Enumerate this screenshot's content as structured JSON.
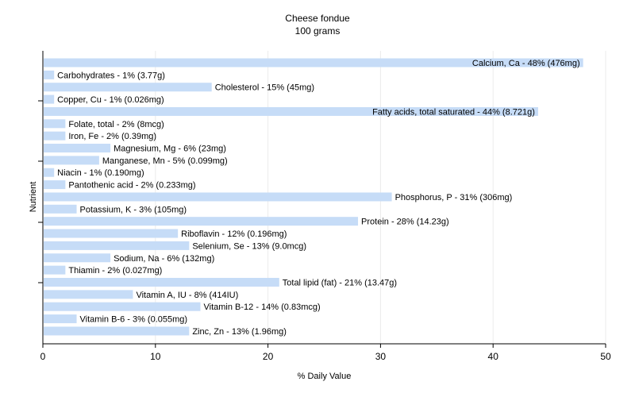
{
  "chart_data": {
    "type": "bar",
    "orientation": "horizontal",
    "title": "Cheese fondue",
    "subtitle": "100 grams",
    "xlabel": "% Daily Value",
    "ylabel": "Nutrient",
    "xlim": [
      0,
      50
    ],
    "x_ticks": [
      "0",
      "10",
      "20",
      "30",
      "40",
      "50"
    ],
    "grid": "vertical",
    "bar_color": "#c6dcf7",
    "categories": [
      "Calcium, Ca",
      "Carbohydrates",
      "Cholesterol",
      "Copper, Cu",
      "Fatty acids, total saturated",
      "Folate, total",
      "Iron, Fe",
      "Magnesium, Mg",
      "Manganese, Mn",
      "Niacin",
      "Pantothenic acid",
      "Phosphorus, P",
      "Potassium, K",
      "Protein",
      "Riboflavin",
      "Selenium, Se",
      "Sodium, Na",
      "Thiamin",
      "Total lipid (fat)",
      "Vitamin A, IU",
      "Vitamin B-12",
      "Vitamin B-6",
      "Zinc, Zn"
    ],
    "values": [
      48,
      1,
      15,
      1,
      44,
      2,
      2,
      6,
      5,
      1,
      2,
      31,
      3,
      28,
      12,
      13,
      6,
      2,
      21,
      8,
      14,
      3,
      13
    ],
    "bar_labels": [
      "Calcium, Ca - 48% (476mg)",
      "Carbohydrates - 1% (3.77g)",
      "Cholesterol - 15% (45mg)",
      "Copper, Cu - 1% (0.026mg)",
      "Fatty acids, total saturated - 44% (8.721g)",
      "Folate, total - 2% (8mcg)",
      "Iron, Fe - 2% (0.39mg)",
      "Magnesium, Mg - 6% (23mg)",
      "Manganese, Mn - 5% (0.099mg)",
      "Niacin - 1% (0.190mg)",
      "Pantothenic acid - 2% (0.233mg)",
      "Phosphorus, P - 31% (306mg)",
      "Potassium, K - 3% (105mg)",
      "Protein - 28% (14.23g)",
      "Riboflavin - 12% (0.196mg)",
      "Selenium, Se - 13% (9.0mcg)",
      "Sodium, Na - 6% (132mg)",
      "Thiamin - 2% (0.027mg)",
      "Total lipid (fat) - 21% (13.47g)",
      "Vitamin A, IU - 8% (414IU)",
      "Vitamin B-12 - 14% (0.83mcg)",
      "Vitamin B-6 - 3% (0.055mg)",
      "Zinc, Zn - 13% (1.96mg)"
    ]
  }
}
